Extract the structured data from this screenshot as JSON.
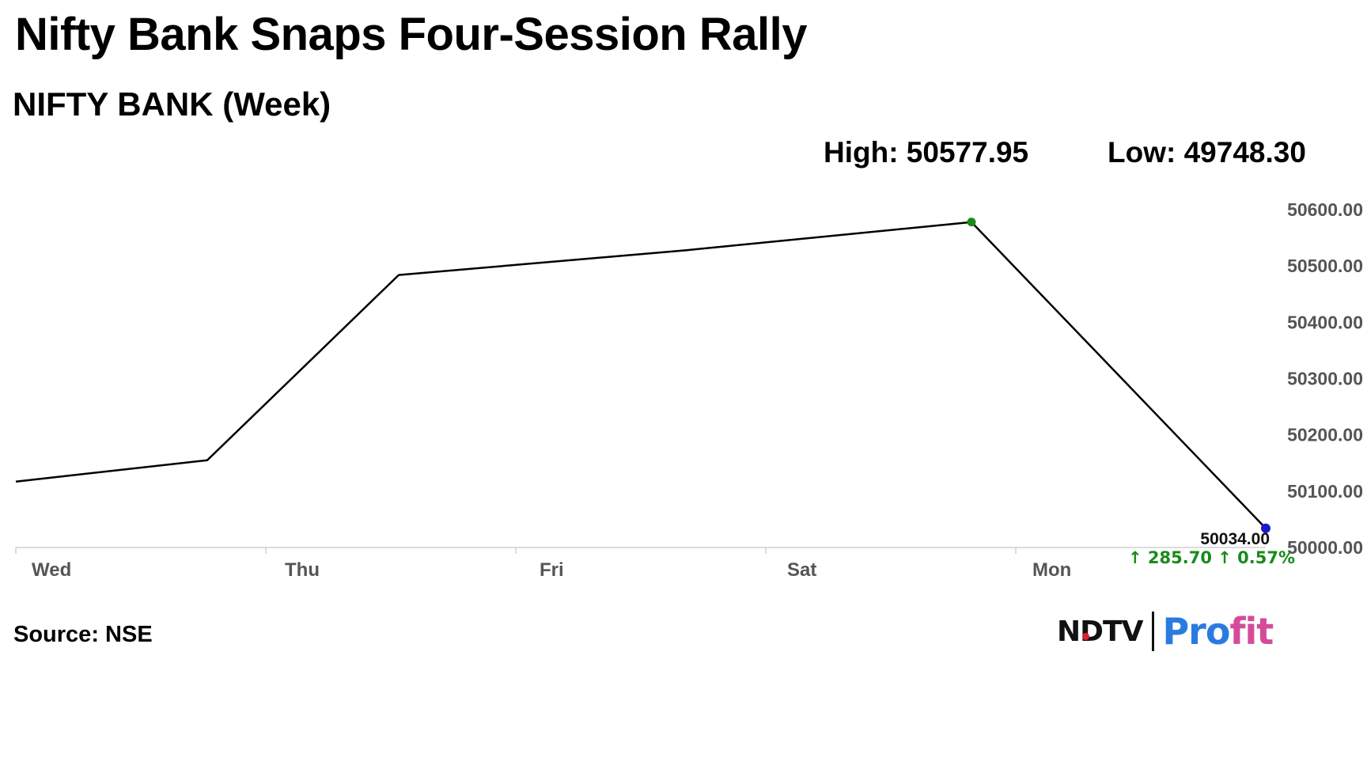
{
  "header": {
    "title": "Nifty Bank Snaps Four-Session Rally",
    "subtitle": "NIFTY BANK (Week)"
  },
  "stats": {
    "high_label": "High: 50577.95",
    "low_label": "Low: 49748.30"
  },
  "chart_data": {
    "type": "line",
    "x": [
      "Wed",
      "Wed",
      "Thu",
      "Fri",
      "Sat",
      "Mon"
    ],
    "categories": [
      "Wed",
      "Thu",
      "Fri",
      "Sat",
      "Mon"
    ],
    "series": [
      {
        "values": [
          50117,
          50155,
          50484,
          50528,
          50578,
          50034
        ]
      }
    ],
    "ylim": [
      50000,
      50600
    ],
    "y_ticks": [
      "50600.00",
      "50500.00",
      "50400.00",
      "50300.00",
      "50200.00",
      "50100.00",
      "50000.00"
    ],
    "last_value_label": "50034.00",
    "change_label": "↑ 285.70 ↑ 0.57%",
    "colors": {
      "line": "#000000",
      "high_marker": "#1a8a1a",
      "last_marker": "#1a1acc",
      "change": "#1a8a1a",
      "axis": "#d0d0d0",
      "tick_text": "#555555"
    }
  },
  "footer": {
    "source": "Source: NSE",
    "logo_ndtv": "NDTV",
    "logo_profit_a": "Pro",
    "logo_profit_b": "fit"
  }
}
